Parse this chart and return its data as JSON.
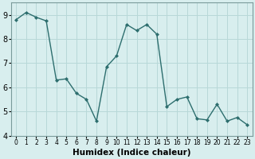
{
  "xlabel": "Humidex (Indice chaleur)",
  "x": [
    0,
    1,
    2,
    3,
    4,
    5,
    6,
    7,
    8,
    9,
    10,
    11,
    12,
    13,
    14,
    15,
    16,
    17,
    18,
    19,
    20,
    21,
    22,
    23
  ],
  "y": [
    8.8,
    9.1,
    8.9,
    8.75,
    6.3,
    6.35,
    5.75,
    5.5,
    4.6,
    6.85,
    7.3,
    8.6,
    8.35,
    8.6,
    8.2,
    5.2,
    5.5,
    5.6,
    4.7,
    4.65,
    5.3,
    4.6,
    4.75,
    4.45
  ],
  "line_color": "#2d6e6e",
  "marker": "D",
  "marker_size": 2.0,
  "bg_color": "#d8eeee",
  "grid_color": "#b8d8d8",
  "ylim": [
    4,
    9.5
  ],
  "xlim": [
    -0.5,
    23.5
  ],
  "yticks": [
    4,
    5,
    6,
    7,
    8,
    9
  ],
  "xticks": [
    0,
    1,
    2,
    3,
    4,
    5,
    6,
    7,
    8,
    9,
    10,
    11,
    12,
    13,
    14,
    15,
    16,
    17,
    18,
    19,
    20,
    21,
    22,
    23
  ],
  "xlabel_fontsize": 7.5,
  "ytick_fontsize": 7,
  "xtick_fontsize": 5.5,
  "line_width": 1.0
}
